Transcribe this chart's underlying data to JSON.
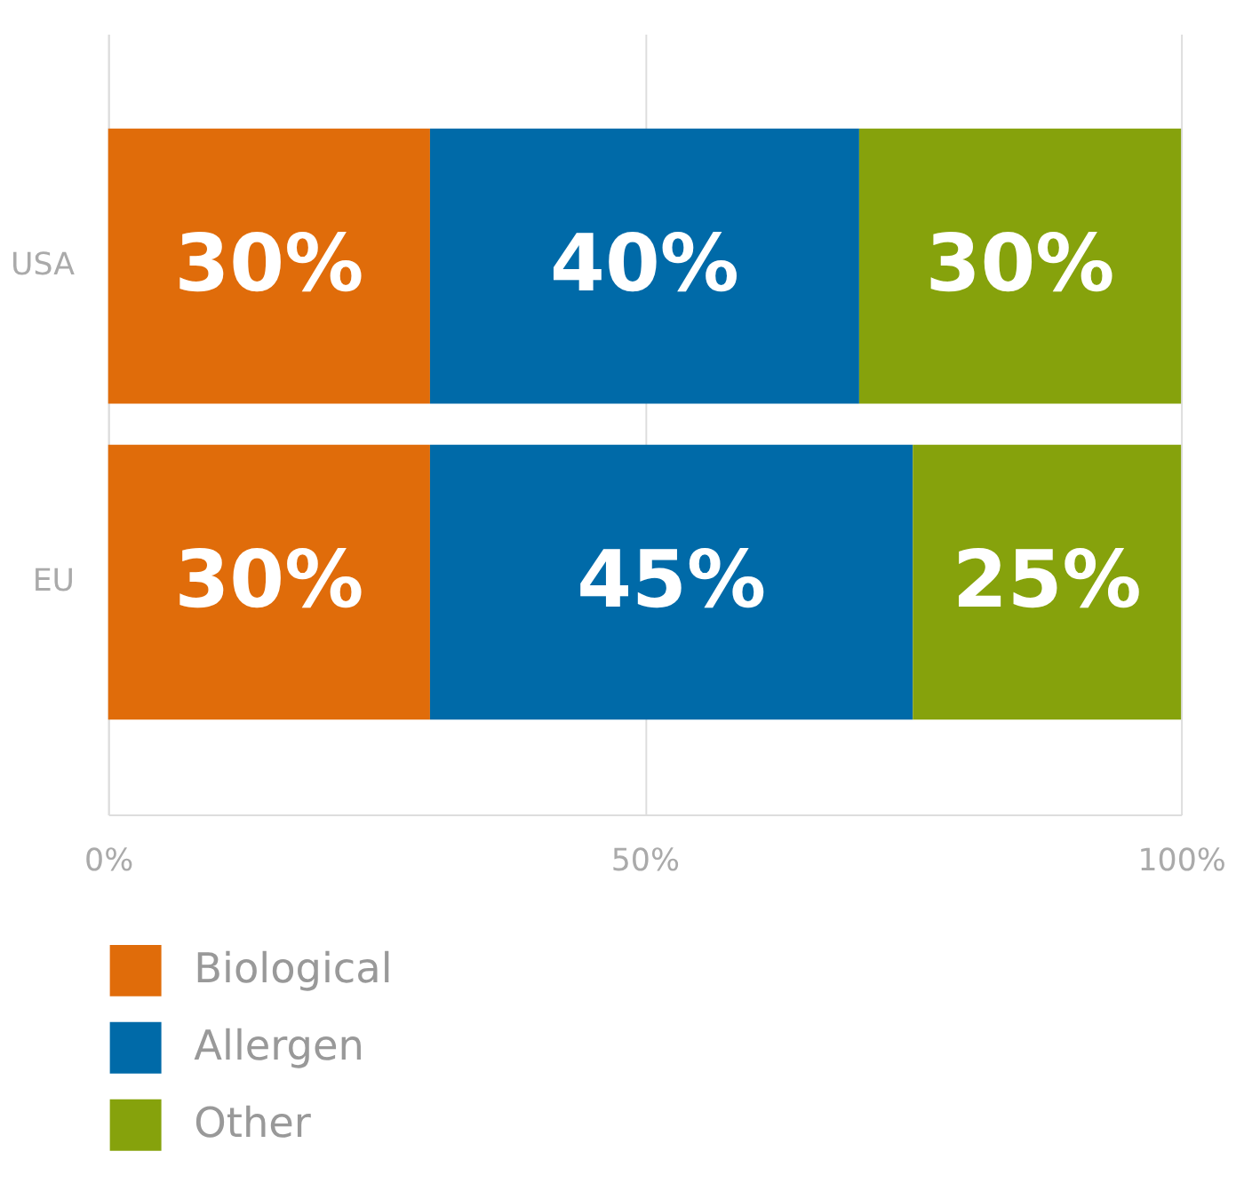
{
  "chart_data": {
    "type": "bar",
    "orientation": "horizontal",
    "stacked": true,
    "categories": [
      "USA",
      "EU"
    ],
    "series": [
      {
        "name": "Biological",
        "color": "#e06c0a",
        "values": [
          30,
          30
        ]
      },
      {
        "name": "Allergen",
        "color": "#006aa8",
        "values": [
          40,
          45
        ]
      },
      {
        "name": "Other",
        "color": "#86a20c",
        "values": [
          30,
          25
        ]
      }
    ],
    "xlim": [
      0,
      100
    ],
    "xticks": [
      {
        "value": 0,
        "label": "0%"
      },
      {
        "value": 50,
        "label": "50%"
      },
      {
        "value": 100,
        "label": "100%"
      }
    ],
    "value_labels": [
      [
        "30%",
        "30%"
      ],
      [
        "40%",
        "45%"
      ],
      [
        "30%",
        "25%"
      ]
    ],
    "grid": "x",
    "legend": "bottom left"
  }
}
